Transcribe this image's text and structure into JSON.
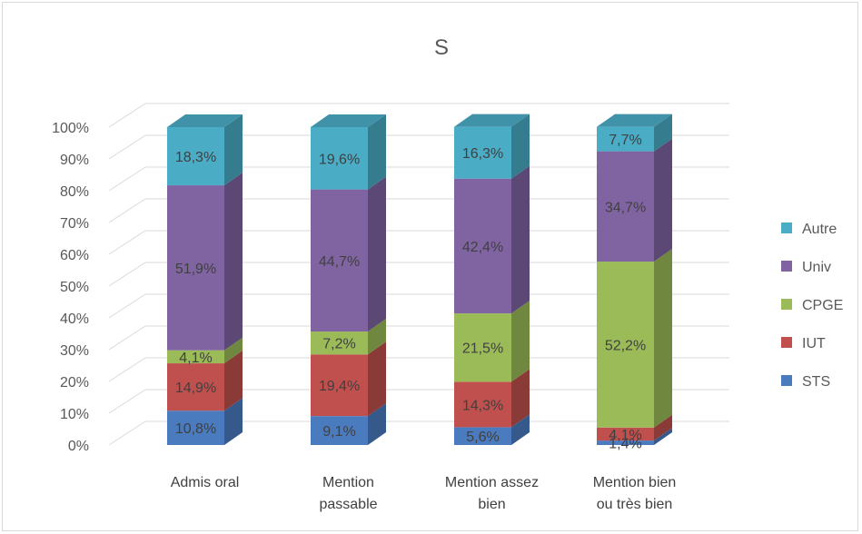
{
  "chart_data": {
    "type": "bar",
    "stacked": true,
    "percent": true,
    "style": "3d-column",
    "title": "S",
    "xlabel": "",
    "ylabel": "",
    "ylim": [
      0,
      100
    ],
    "y_ticks": [
      "0%",
      "10%",
      "20%",
      "30%",
      "40%",
      "50%",
      "60%",
      "70%",
      "80%",
      "90%",
      "100%"
    ],
    "categories": [
      [
        "Admis oral"
      ],
      [
        "Mention",
        "passable"
      ],
      [
        "Mention assez",
        "bien"
      ],
      [
        "Mention bien",
        "ou très bien"
      ]
    ],
    "series": [
      {
        "name": "STS",
        "color": "#4a7bbf",
        "values": [
          10.8,
          9.1,
          5.6,
          1.4
        ],
        "labels": [
          "10,8%",
          "9,1%",
          "5,6%",
          "1,4%"
        ]
      },
      {
        "name": "IUT",
        "color": "#c0504d",
        "values": [
          14.9,
          19.4,
          14.3,
          4.1
        ],
        "labels": [
          "14,9%",
          "19,4%",
          "14,3%",
          "4,1%"
        ]
      },
      {
        "name": "CPGE",
        "color": "#9bbb59",
        "values": [
          4.1,
          7.2,
          21.5,
          52.2
        ],
        "labels": [
          "4,1%",
          "7,2%",
          "21,5%",
          "52,2%"
        ]
      },
      {
        "name": "Univ",
        "color": "#8064a2",
        "values": [
          51.9,
          44.7,
          42.4,
          34.7
        ],
        "labels": [
          "51,9%",
          "44,7%",
          "42,4%",
          "34,7%"
        ]
      },
      {
        "name": "Autre",
        "color": "#4bacc6",
        "values": [
          18.3,
          19.6,
          16.3,
          7.7
        ],
        "labels": [
          "18,3%",
          "19,6%",
          "16,3%",
          "7,7%"
        ]
      }
    ],
    "legend_position": "right",
    "legend_order": [
      "Autre",
      "Univ",
      "CPGE",
      "IUT",
      "STS"
    ],
    "grid": true
  }
}
